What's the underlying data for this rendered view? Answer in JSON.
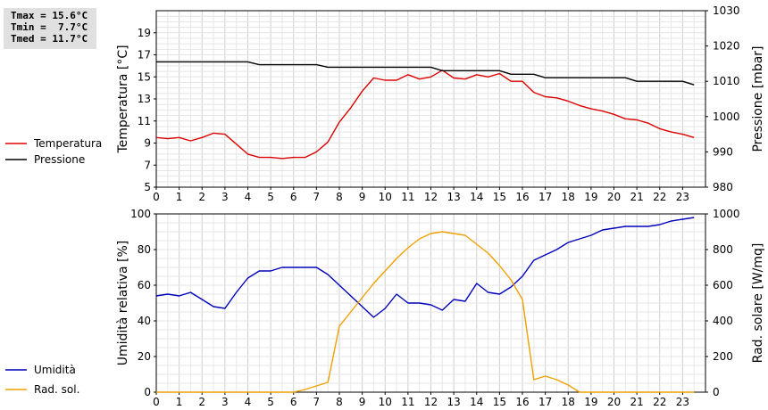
{
  "stats": {
    "tmax": "Tmax = 15.6°C",
    "tmin": "Tmin =  7.7°C",
    "tmed": "Tmed = 11.7°C"
  },
  "colors": {
    "temperature": "#dd0000",
    "pressure": "#000000",
    "humidity": "#0000bb",
    "solar": "#f0a000",
    "grid": "#dcdcdc"
  },
  "chart_data": [
    {
      "type": "line",
      "x_ticks": [
        "0",
        "1",
        "2",
        "3",
        "4",
        "5",
        "6",
        "7",
        "8",
        "9",
        "10",
        "11",
        "12",
        "13",
        "14",
        "15",
        "16",
        "17",
        "18",
        "19",
        "20",
        "21",
        "22",
        "23"
      ],
      "xlim": [
        0,
        24
      ],
      "ylabel": "Temperatura [°C]",
      "ylabel_right": "Pressione [mbar]",
      "ylim": [
        5,
        21
      ],
      "ylim_right": [
        980,
        1030
      ],
      "y_ticks": [
        "5",
        "7",
        "9",
        "11",
        "13",
        "15",
        "17",
        "19"
      ],
      "y_ticks_right": [
        "980",
        "990",
        "1000",
        "1010",
        "1020",
        "1030"
      ],
      "legend": [
        "Temperatura",
        "Pressione"
      ],
      "grid": true,
      "series": [
        {
          "name": "Temperatura",
          "axis": "left",
          "x": [
            0,
            0.5,
            1,
            1.5,
            2,
            2.5,
            3,
            3.5,
            4,
            4.5,
            5,
            5.5,
            6,
            6.5,
            7,
            7.5,
            8,
            8.5,
            9,
            9.5,
            10,
            10.5,
            11,
            11.5,
            12,
            12.5,
            13,
            13.5,
            14,
            14.5,
            15,
            15.5,
            16,
            16.5,
            17,
            17.5,
            18,
            18.5,
            19,
            19.5,
            20,
            20.5,
            21,
            21.5,
            22,
            22.5,
            23,
            23.5
          ],
          "y": [
            9.5,
            9.4,
            9.5,
            9.2,
            9.5,
            9.9,
            9.8,
            8.9,
            8.0,
            7.7,
            7.7,
            7.6,
            7.7,
            7.7,
            8.2,
            9.1,
            10.9,
            12.2,
            13.7,
            14.9,
            14.7,
            14.7,
            15.2,
            14.8,
            15.0,
            15.6,
            14.9,
            14.8,
            15.2,
            15.0,
            15.3,
            14.6,
            14.6,
            13.6,
            13.2,
            13.1,
            12.8,
            12.4,
            12.1,
            11.9,
            11.6,
            11.2,
            11.1,
            10.8,
            10.3,
            10.0,
            9.8,
            9.5
          ]
        },
        {
          "name": "Pressione",
          "axis": "right",
          "x": [
            0,
            4,
            4.5,
            7,
            7.5,
            12,
            12.5,
            15,
            15.5,
            16.5,
            17,
            20.5,
            21,
            23,
            23.5
          ],
          "y": [
            1015.5,
            1015.5,
            1014.7,
            1014.7,
            1014,
            1014,
            1013,
            1013,
            1012,
            1012,
            1011,
            1011,
            1010,
            1010,
            1009
          ]
        }
      ]
    },
    {
      "type": "line",
      "x_ticks": [
        "0",
        "1",
        "2",
        "3",
        "4",
        "5",
        "6",
        "7",
        "8",
        "9",
        "10",
        "11",
        "12",
        "13",
        "14",
        "15",
        "16",
        "17",
        "18",
        "19",
        "20",
        "21",
        "22",
        "23"
      ],
      "xlim": [
        0,
        24
      ],
      "ylabel": "Umidità relativa [%]",
      "ylabel_right": "Rad. solare [W/mq]",
      "ylim": [
        0,
        100
      ],
      "ylim_right": [
        0,
        1000
      ],
      "y_ticks": [
        "0",
        "20",
        "40",
        "60",
        "80",
        "100"
      ],
      "y_ticks_right": [
        "0",
        "200",
        "400",
        "600",
        "800",
        "1000"
      ],
      "legend": [
        "Umidità",
        "Rad. sol."
      ],
      "grid": true,
      "series": [
        {
          "name": "Umidità",
          "axis": "left",
          "x": [
            0,
            0.5,
            1,
            1.5,
            2,
            2.5,
            3,
            3.5,
            4,
            4.5,
            5,
            5.5,
            6,
            6.5,
            7,
            7.5,
            8,
            8.5,
            9,
            9.5,
            10,
            10.5,
            11,
            11.5,
            12,
            12.5,
            13,
            13.5,
            14,
            14.5,
            15,
            15.5,
            16,
            16.5,
            17,
            17.5,
            18,
            18.5,
            19,
            19.5,
            20,
            20.5,
            21,
            21.5,
            22,
            22.5,
            23,
            23.5
          ],
          "y": [
            54,
            55,
            54,
            56,
            52,
            48,
            47,
            56,
            64,
            68,
            68,
            70,
            70,
            70,
            70,
            66,
            60,
            54,
            48,
            42,
            47,
            55,
            50,
            50,
            49,
            46,
            52,
            51,
            61,
            56,
            55,
            59,
            65,
            74,
            77,
            80,
            84,
            86,
            88,
            91,
            92,
            93,
            93,
            93,
            94,
            96,
            97,
            98
          ]
        },
        {
          "name": "Rad. sol.",
          "axis": "right",
          "x": [
            0,
            1,
            2,
            3,
            4,
            5,
            6,
            6.5,
            7,
            7.5,
            8,
            8.5,
            9,
            9.5,
            10,
            10.5,
            11,
            11.5,
            12,
            12.5,
            13,
            13.5,
            14,
            14.5,
            15,
            15.5,
            16,
            16.5,
            17,
            17.5,
            18,
            18.5,
            19,
            20,
            21,
            22,
            23,
            23.5
          ],
          "y": [
            0,
            0,
            0,
            0,
            0,
            0,
            0,
            15,
            35,
            55,
            370,
            450,
            530,
            610,
            680,
            750,
            810,
            860,
            890,
            900,
            890,
            880,
            830,
            780,
            710,
            630,
            520,
            70,
            90,
            70,
            40,
            0,
            0,
            0,
            0,
            0,
            0,
            0
          ]
        }
      ]
    }
  ]
}
